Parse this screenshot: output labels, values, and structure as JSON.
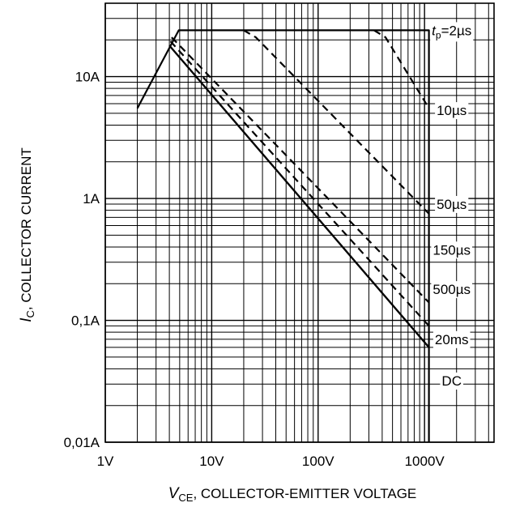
{
  "chart_data": {
    "type": "line",
    "x_scale": "log",
    "y_scale": "log",
    "xlim": [
      1,
      4500
    ],
    "ylim": [
      0.01,
      40
    ],
    "grid": true,
    "legend": "inline labels on right side",
    "xlabel": {
      "symbol": "V",
      "subscript": "CE",
      "text": ", COLLECTOR-EMITTER VOLTAGE"
    },
    "ylabel": {
      "symbol": "I",
      "subscript": "C",
      "text": ", COLLECTOR CURRENT"
    },
    "x_tick_labels": [
      {
        "value": 1,
        "label": "1V"
      },
      {
        "value": 10,
        "label": "10V"
      },
      {
        "value": 100,
        "label": "100V"
      },
      {
        "value": 1000,
        "label": "1000V"
      }
    ],
    "y_tick_labels": [
      {
        "value": 0.01,
        "label": "0,01A"
      },
      {
        "value": 0.1,
        "label": "0,1A"
      },
      {
        "value": 1,
        "label": "1A"
      },
      {
        "value": 10,
        "label": "10A"
      }
    ],
    "series": [
      {
        "label": "tp=2µs",
        "style": "solid",
        "points": [
          [
            2,
            5.5
          ],
          [
            4.9,
            24
          ],
          [
            1100,
            24
          ],
          [
            1100,
            0.01
          ]
        ]
      },
      {
        "label": "10µs",
        "style": "dashed",
        "points": [
          [
            335,
            24
          ],
          [
            430,
            21
          ],
          [
            1100,
            5.5
          ]
        ]
      },
      {
        "label": "50µs",
        "style": "dashed",
        "points": [
          [
            20,
            24
          ],
          [
            26,
            21
          ],
          [
            1100,
            0.75
          ]
        ]
      },
      {
        "label": "150µs",
        "style": "dashed",
        "points": [
          [
            4.2,
            21
          ],
          [
            1100,
            0.14
          ]
        ]
      },
      {
        "label": "500µs",
        "style": "dashed",
        "points": [
          [
            4.1,
            19.5
          ],
          [
            1100,
            0.09
          ]
        ]
      },
      {
        "label": "20ms",
        "style": "solid",
        "points": [
          [
            4,
            18
          ],
          [
            1100,
            0.06
          ]
        ]
      },
      {
        "label": "DC",
        "style": "solid",
        "points": [
          [
            4,
            18
          ],
          [
            1100,
            0.06
          ]
        ]
      }
    ],
    "labels": [
      {
        "text_italic": "t",
        "text_sub": "p",
        "text": "=2µs",
        "x": 1800,
        "y": 24
      },
      {
        "text": "10µs",
        "x": 1800,
        "y": 5.3
      },
      {
        "text": "50µs",
        "x": 1800,
        "y": 0.9
      },
      {
        "text": "150µs",
        "x": 1800,
        "y": 0.38
      },
      {
        "text": "500µs",
        "x": 1800,
        "y": 0.18
      },
      {
        "text": "20ms",
        "x": 1800,
        "y": 0.07
      },
      {
        "text": "DC",
        "x": 1800,
        "y": 0.032
      }
    ]
  }
}
